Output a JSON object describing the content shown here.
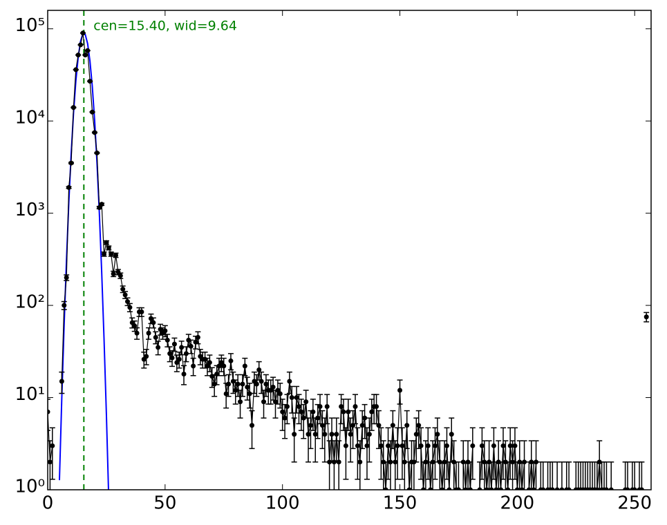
{
  "chart_data": {
    "type": "errorbar",
    "annotation": "cen=15.40, wid=9.64",
    "log_y": true,
    "color": "#000000",
    "xlim": [
      0,
      257
    ],
    "ylim": [
      1,
      158489
    ],
    "xticks": [
      0,
      50,
      100,
      150,
      200,
      250
    ],
    "yticks": [
      {
        "value": 1,
        "label": "10⁰"
      },
      {
        "value": 10,
        "label": "10¹"
      },
      {
        "value": 100,
        "label": "10²"
      },
      {
        "value": 1000,
        "label": "10³"
      },
      {
        "value": 10000,
        "label": "10⁴"
      },
      {
        "value": 100000,
        "label": "10⁵"
      }
    ],
    "reference_line": {
      "x": 15.4,
      "color": "#008000"
    },
    "fit": {
      "color": "#0000ff",
      "x": [
        5,
        6,
        7,
        8,
        9,
        10,
        11,
        12,
        13,
        14,
        15,
        16,
        17,
        18,
        19,
        20,
        21,
        22,
        23,
        24,
        25,
        26
      ],
      "values": [
        1.27,
        9.8,
        61,
        312,
        1310,
        4430,
        12200,
        27300,
        49600,
        73500,
        88500,
        86700,
        69100,
        44800,
        23600,
        10100,
        3520,
        998,
        230,
        43,
        6.6,
        0.8
      ]
    },
    "x": [
      0,
      1,
      2,
      3,
      4,
      5,
      6,
      7,
      8,
      9,
      10,
      11,
      12,
      13,
      14,
      15,
      16,
      17,
      18,
      19,
      20,
      21,
      22,
      23,
      24,
      25,
      26,
      27,
      28,
      29,
      30,
      31,
      32,
      33,
      34,
      35,
      36,
      37,
      38,
      39,
      40,
      41,
      42,
      43,
      44,
      45,
      46,
      47,
      48,
      49,
      50,
      51,
      52,
      53,
      54,
      55,
      56,
      57,
      58,
      59,
      60,
      61,
      62,
      63,
      64,
      65,
      66,
      67,
      68,
      69,
      70,
      71,
      72,
      73,
      74,
      75,
      76,
      77,
      78,
      79,
      80,
      81,
      82,
      83,
      84,
      85,
      86,
      87,
      88,
      89,
      90,
      91,
      92,
      93,
      94,
      95,
      96,
      97,
      98,
      99,
      100,
      101,
      102,
      103,
      104,
      105,
      106,
      107,
      108,
      109,
      110,
      111,
      112,
      113,
      114,
      115,
      116,
      117,
      118,
      119,
      120,
      121,
      122,
      123,
      124,
      125,
      126,
      127,
      128,
      129,
      130,
      131,
      132,
      133,
      134,
      135,
      136,
      137,
      138,
      139,
      140,
      141,
      142,
      143,
      144,
      145,
      146,
      147,
      148,
      149,
      150,
      151,
      152,
      153,
      154,
      155,
      156,
      157,
      158,
      159,
      160,
      161,
      162,
      163,
      164,
      165,
      166,
      167,
      168,
      169,
      170,
      171,
      172,
      173,
      174,
      175,
      176,
      177,
      178,
      179,
      180,
      181,
      182,
      183,
      184,
      185,
      186,
      187,
      188,
      189,
      190,
      191,
      192,
      193,
      194,
      195,
      196,
      197,
      198,
      199,
      200,
      201,
      202,
      203,
      204,
      205,
      206,
      207,
      208,
      209,
      210,
      211,
      212,
      213,
      214,
      215,
      216,
      217,
      218,
      219,
      220,
      221,
      222,
      223,
      224,
      225,
      226,
      227,
      228,
      229,
      230,
      231,
      232,
      233,
      234,
      235,
      236,
      237,
      238,
      239,
      240,
      241,
      242,
      243,
      244,
      245,
      246,
      247,
      248,
      249,
      250,
      251,
      252,
      253,
      254,
      255
    ],
    "values": [
      7,
      2,
      3,
      null,
      null,
      null,
      15,
      100,
      200,
      1900,
      3500,
      14000,
      36000,
      52000,
      67000,
      90000,
      52000,
      58000,
      27000,
      12500,
      7500,
      4500,
      1150,
      1250,
      360,
      480,
      420,
      360,
      220,
      350,
      230,
      210,
      150,
      130,
      110,
      95,
      65,
      60,
      50,
      85,
      85,
      26,
      28,
      50,
      72,
      65,
      45,
      35,
      55,
      50,
      53,
      42,
      30,
      27,
      38,
      24,
      26,
      35,
      18,
      30,
      42,
      36,
      22,
      40,
      45,
      28,
      26,
      26,
      22,
      24,
      17,
      14,
      18,
      22,
      24,
      22,
      11,
      14,
      25,
      15,
      12,
      14,
      9,
      14,
      22,
      13,
      11,
      5,
      15,
      14,
      20,
      15,
      9,
      14,
      12,
      12,
      13,
      9,
      12,
      11,
      7,
      6,
      8,
      15,
      10,
      4,
      10,
      8,
      7,
      6,
      9,
      4,
      5,
      7,
      4,
      6,
      8,
      5,
      4,
      8,
      2,
      4,
      2,
      4,
      2,
      8,
      7,
      3,
      7,
      4,
      5,
      8,
      3,
      2,
      5,
      6,
      3,
      4,
      7,
      8,
      8,
      5,
      3,
      2,
      1,
      3,
      2,
      5,
      2,
      3,
      12,
      3,
      2,
      5,
      1,
      2,
      2,
      4,
      5,
      3,
      1,
      2,
      3,
      1,
      2,
      3,
      4,
      2,
      1,
      2,
      3,
      1,
      4,
      2,
      1,
      1,
      null,
      2,
      1,
      2,
      1,
      3,
      null,
      null,
      1,
      3,
      2,
      1,
      2,
      1,
      3,
      1,
      2,
      1,
      3,
      2,
      1,
      3,
      2,
      3,
      1,
      2,
      1,
      2,
      null,
      1,
      2,
      1,
      2,
      null,
      1,
      1,
      null,
      1,
      1,
      1,
      null,
      1,
      null,
      1,
      null,
      1,
      1,
      null,
      null,
      1,
      1,
      1,
      1,
      1,
      1,
      1,
      1,
      1,
      1,
      2,
      1,
      1,
      1,
      null,
      1,
      null,
      null,
      null,
      null,
      null,
      1,
      1,
      null,
      1,
      1,
      null,
      1,
      1,
      null,
      75
    ],
    "errors": [
      2.6,
      1.4,
      1.7,
      null,
      null,
      null,
      3.9,
      10,
      14.1,
      43.6,
      59.2,
      118.3,
      189.7,
      228,
      258.8,
      300,
      228,
      240.8,
      164.3,
      111.8,
      86.6,
      67.1,
      33.9,
      35.4,
      19,
      21.9,
      20.5,
      19,
      14.8,
      18.7,
      15.2,
      14.5,
      12.2,
      11.4,
      10.5,
      9.7,
      8.1,
      7.7,
      7.1,
      9.2,
      9.2,
      5.1,
      5.3,
      7.1,
      8.5,
      8.1,
      6.7,
      5.9,
      7.4,
      7.1,
      7.3,
      6.5,
      5.5,
      5.2,
      6.2,
      4.9,
      5.1,
      5.9,
      4.2,
      5.5,
      6.5,
      6,
      4.7,
      6.3,
      6.7,
      5.3,
      5.1,
      5.1,
      4.7,
      4.9,
      4.1,
      3.7,
      4.2,
      4.7,
      4.9,
      4.7,
      3.3,
      3.7,
      5,
      3.9,
      3.5,
      3.7,
      3,
      3.7,
      4.7,
      3.6,
      3.3,
      2.2,
      3.9,
      3.7,
      4.5,
      3.9,
      3,
      3.7,
      3.5,
      3.5,
      3.6,
      3,
      3.5,
      3.3,
      2.6,
      2.4,
      2.8,
      3.9,
      3.2,
      2,
      3.2,
      2.8,
      2.6,
      2.4,
      3,
      2,
      2.2,
      2.6,
      2,
      2.4,
      2.8,
      2.2,
      2,
      2.8,
      1.4,
      2,
      1.4,
      2,
      1.4,
      2.8,
      2.6,
      1.7,
      2.6,
      2,
      2.2,
      2.8,
      1.7,
      1.4,
      2.2,
      2.4,
      1.7,
      2,
      2.6,
      2.8,
      2.8,
      2.2,
      1.7,
      1.4,
      1,
      1.7,
      1.4,
      2.2,
      1.4,
      1.7,
      3.5,
      1.7,
      1.4,
      2.2,
      1,
      1.4,
      1.4,
      2,
      2.2,
      1.7,
      1,
      1.4,
      1.7,
      1,
      1.4,
      1.7,
      2,
      1.4,
      1,
      1.4,
      1.7,
      1,
      2,
      1.4,
      1,
      1,
      null,
      1.4,
      1,
      1.4,
      1,
      1.7,
      null,
      null,
      1,
      1.7,
      1.4,
      1,
      1.4,
      1,
      1.7,
      1,
      1.4,
      1,
      1.7,
      1.4,
      1,
      1.7,
      1.4,
      1.7,
      1,
      1.4,
      1,
      1.4,
      null,
      1,
      1.4,
      1,
      1.4,
      null,
      1,
      1,
      null,
      1,
      1,
      1,
      null,
      1,
      null,
      1,
      null,
      1,
      1,
      null,
      null,
      1,
      1,
      1,
      1,
      1,
      1,
      1,
      1,
      1,
      1,
      1.4,
      1,
      1,
      1,
      null,
      1,
      null,
      null,
      null,
      null,
      null,
      1,
      1,
      null,
      1,
      1,
      null,
      1,
      1,
      null,
      8.7
    ]
  }
}
